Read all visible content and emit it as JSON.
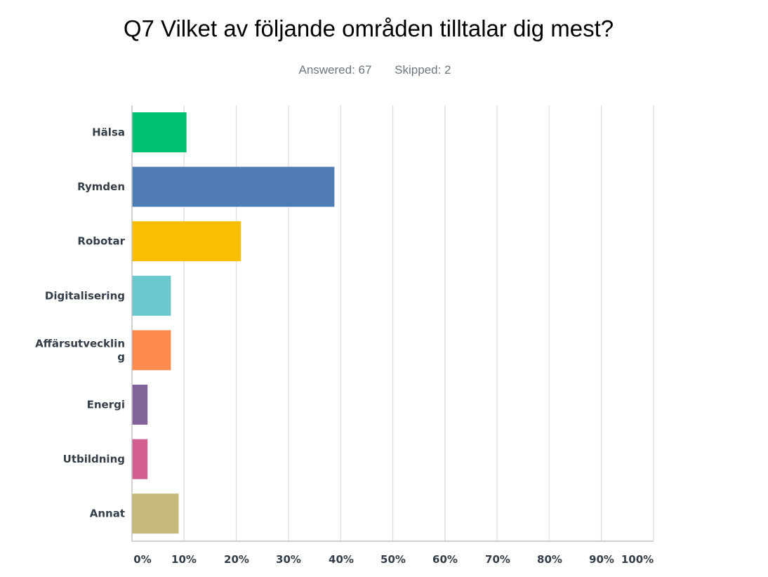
{
  "header": {
    "title": "Q7 Vilket av följande områden tilltalar dig mest?",
    "answered": "Answered: 67",
    "skipped": "Skipped: 2"
  },
  "chart_data": {
    "type": "bar",
    "orientation": "horizontal",
    "categories": [
      [
        "Hälsa"
      ],
      [
        "Rymden"
      ],
      [
        "Robotar"
      ],
      [
        "Digitalisering"
      ],
      [
        "Affärsutvecklin",
        "g"
      ],
      [
        "Energi"
      ],
      [
        "Utbildning"
      ],
      [
        "Annat"
      ]
    ],
    "values": [
      10.45,
      38.81,
      20.9,
      7.46,
      7.46,
      2.99,
      2.99,
      8.96
    ],
    "colors": [
      "#00bf6f",
      "#507cb6",
      "#f9be00",
      "#6bc8cd",
      "#ff8b4f",
      "#7f6399",
      "#d25f90",
      "#c7b879"
    ],
    "xlim": [
      0,
      100
    ],
    "ticks": [
      "0%",
      "10%",
      "20%",
      "30%",
      "40%",
      "50%",
      "60%",
      "70%",
      "80%",
      "90%",
      "100%"
    ],
    "grid": true,
    "gridColor": "#e4e4e4",
    "axisColor": "#c0c0c0"
  }
}
